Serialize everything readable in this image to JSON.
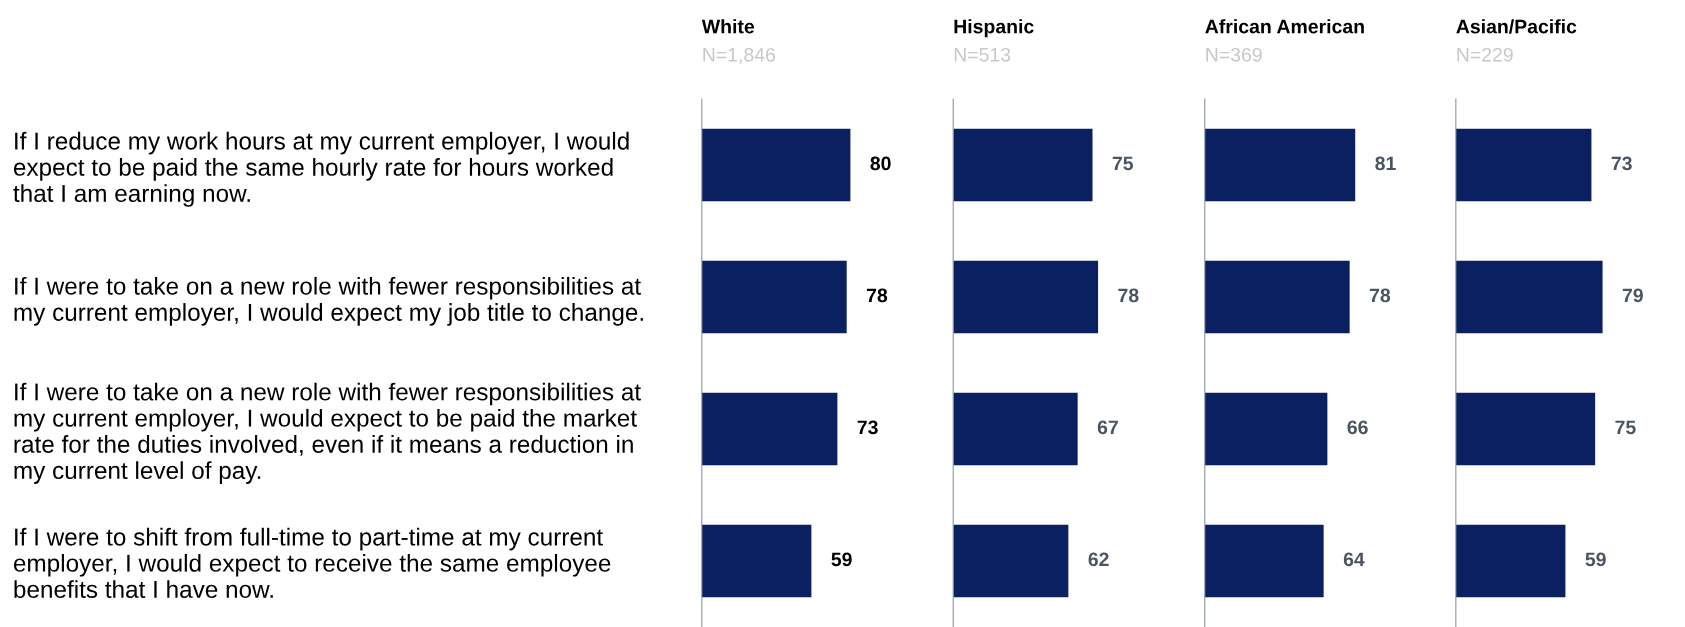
{
  "chart_data": [
    {
      "type": "bar",
      "orientation": "horizontal",
      "title": "White",
      "subtitle": "N=1,846",
      "categories": [
        "If I reduce my work hours at my current employer, I would\nexpect to be paid the same hourly rate for hours worked\nthat I am earning now.",
        "If I were to take on a new role with fewer responsibilities at\nmy current employer, I would expect my job title to change.",
        "If I were to take on a new role with fewer responsibilities at\nmy current employer, I would expect to be paid the market\nrate for the duties involved, even if it means a reduction in\nmy current level of pay.",
        "If I were to shift from full-time to part-time at my current\nemployer, I would expect to receive the same employee\nbenefits that I have now."
      ],
      "series": [
        {
          "color": "#0a2060",
          "values": [
            80,
            78,
            73,
            59
          ]
        }
      ],
      "data_labels": true,
      "tick_labels": "y"
    },
    {
      "type": "bar",
      "orientation": "horizontal",
      "title": "Hispanic",
      "subtitle": "N=513",
      "series": [
        {
          "color": "#0a2060",
          "values": [
            75,
            78,
            67,
            62
          ]
        }
      ],
      "data_labels": true,
      "tick_labels": false
    },
    {
      "type": "bar",
      "orientation": "horizontal",
      "title": "African American",
      "subtitle": "N=369",
      "series": [
        {
          "color": "#0a2060",
          "values": [
            81,
            78,
            66,
            64
          ]
        }
      ],
      "data_labels": true,
      "tick_labels": false
    },
    {
      "type": "bar",
      "orientation": "horizontal",
      "title": "Asian/Pacific",
      "subtitle": "N=229",
      "series": [
        {
          "color": "#0a2060",
          "values": [
            73,
            79,
            75,
            59
          ]
        }
      ],
      "data_labels": true,
      "tick_labels": false
    }
  ]
}
